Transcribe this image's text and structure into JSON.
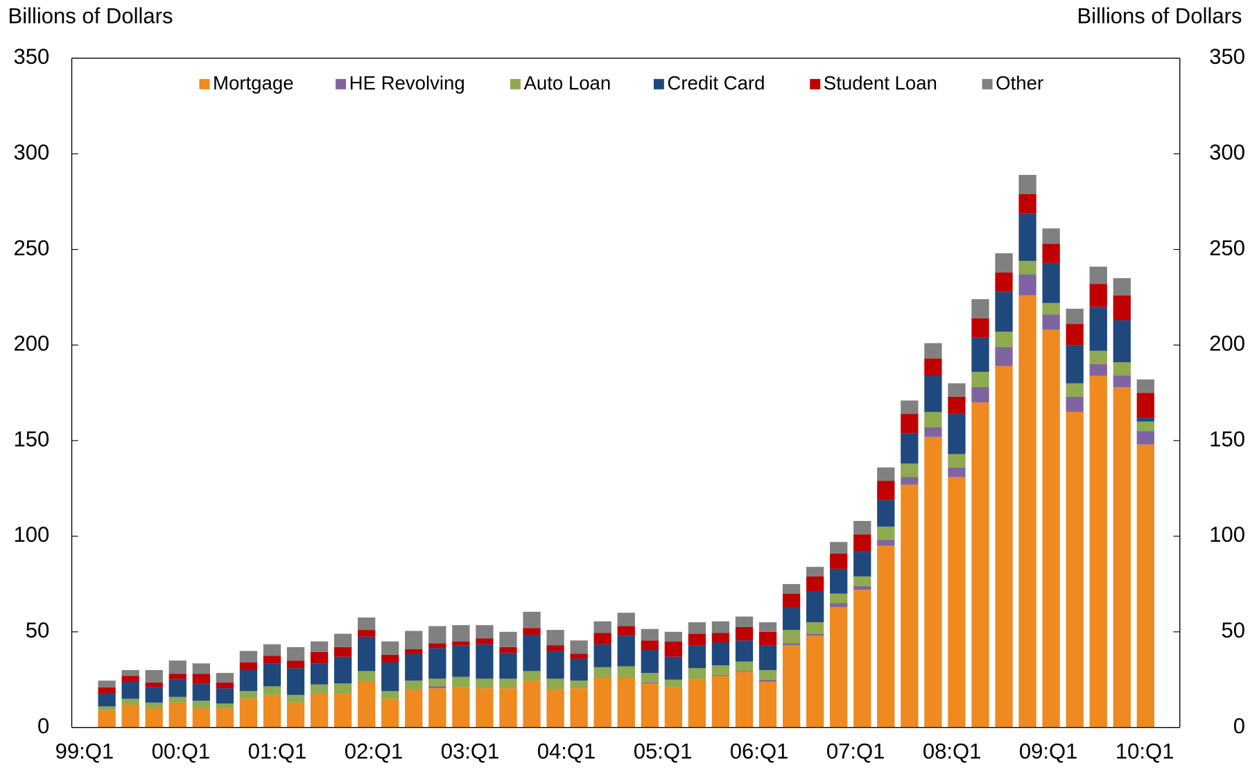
{
  "chart_data": {
    "type": "bar",
    "stacked": true,
    "y_title": "Billions of Dollars",
    "y2_title": "Billions of Dollars",
    "categories": [
      "99:Q1",
      null,
      null,
      null,
      "00:Q1",
      null,
      null,
      null,
      "01:Q1",
      null,
      null,
      null,
      "02:Q1",
      null,
      null,
      null,
      "03:Q1",
      null,
      null,
      null,
      "04:Q1",
      null,
      null,
      null,
      "05:Q1",
      null,
      null,
      null,
      "06:Q1",
      null,
      null,
      null,
      "07:Q1",
      null,
      null,
      null,
      "08:Q1",
      null,
      null,
      null,
      "09:Q1",
      null,
      null,
      null,
      "10:Q1"
    ],
    "series": [
      {
        "name": "Mortgage",
        "color": "#ee8a1f",
        "values": [
          9,
          12,
          10,
          13,
          10,
          10,
          15,
          17,
          13,
          17.5,
          18,
          24,
          15,
          20,
          20.5,
          21,
          20.5,
          20.5,
          24.5,
          20,
          20.5,
          26,
          26,
          23,
          21,
          25,
          27,
          29,
          24,
          43,
          48,
          63,
          72,
          95,
          127,
          152,
          131,
          170,
          189,
          226,
          208,
          165,
          184,
          178,
          148
        ]
      },
      {
        "name": "HE Revolving",
        "color": "#8064a2",
        "values": [
          0,
          0,
          0,
          0,
          0,
          0,
          0,
          0,
          0,
          0,
          0,
          0,
          0,
          0,
          1,
          0,
          0,
          0,
          0,
          0,
          0,
          0,
          0,
          0.5,
          0,
          0,
          0.5,
          0.5,
          1,
          1,
          1,
          2,
          2,
          3,
          4,
          5,
          5,
          8,
          10,
          11,
          8,
          8,
          6,
          6,
          7
        ]
      },
      {
        "name": "Auto Loan",
        "color": "#8faa4f",
        "values": [
          2,
          3,
          3,
          3,
          4,
          2.5,
          4,
          4.5,
          4,
          5,
          5,
          5.5,
          4,
          4.5,
          4,
          5.5,
          5,
          5,
          5,
          5.5,
          4,
          5.5,
          6,
          5,
          4,
          6,
          5,
          5,
          5,
          7,
          6,
          5,
          5,
          7,
          7,
          8,
          7,
          8,
          8,
          7,
          6,
          7,
          7,
          7,
          5
        ]
      },
      {
        "name": "Credit Card",
        "color": "#1f497d",
        "values": [
          7,
          9,
          8,
          9,
          9,
          8,
          11,
          12,
          14,
          11,
          14,
          18,
          15,
          14,
          16,
          16.5,
          18,
          13.5,
          19,
          14.5,
          11.5,
          12,
          16,
          12,
          12,
          12,
          12,
          11,
          13,
          12,
          16,
          13,
          13,
          14,
          16,
          19,
          21,
          18,
          21,
          25,
          21,
          20,
          23,
          22,
          2
        ]
      },
      {
        "name": "Student Loan",
        "color": "#c00000",
        "values": [
          3,
          3,
          2.5,
          3,
          5,
          3,
          4,
          4,
          4,
          6,
          5,
          3.5,
          4,
          2.5,
          2.5,
          2,
          3,
          3,
          3.5,
          3,
          2.5,
          6,
          5,
          5,
          8,
          6,
          5,
          7,
          7,
          7,
          8,
          8,
          9,
          10,
          10,
          9,
          9,
          10,
          10,
          10,
          10,
          11,
          12,
          13,
          13
        ]
      },
      {
        "name": "Other",
        "color": "#808080",
        "values": [
          3.5,
          3,
          6.5,
          7,
          5.5,
          5,
          6,
          6,
          7,
          5.5,
          7,
          6.5,
          7,
          9.5,
          9,
          8.5,
          7,
          8,
          8.5,
          8,
          7,
          6,
          7,
          6,
          5,
          6,
          6,
          5.5,
          5,
          5,
          5,
          6,
          7,
          7,
          7,
          8,
          7,
          10,
          10,
          10,
          8,
          8,
          9,
          9,
          7
        ]
      }
    ],
    "ylim": [
      0,
      350
    ],
    "yticks": [
      0,
      50,
      100,
      150,
      200,
      250,
      300,
      350
    ],
    "y2lim": [
      0,
      350
    ],
    "y2ticks": [
      0,
      50,
      100,
      150,
      200,
      250,
      300,
      350
    ],
    "legend": "top"
  }
}
